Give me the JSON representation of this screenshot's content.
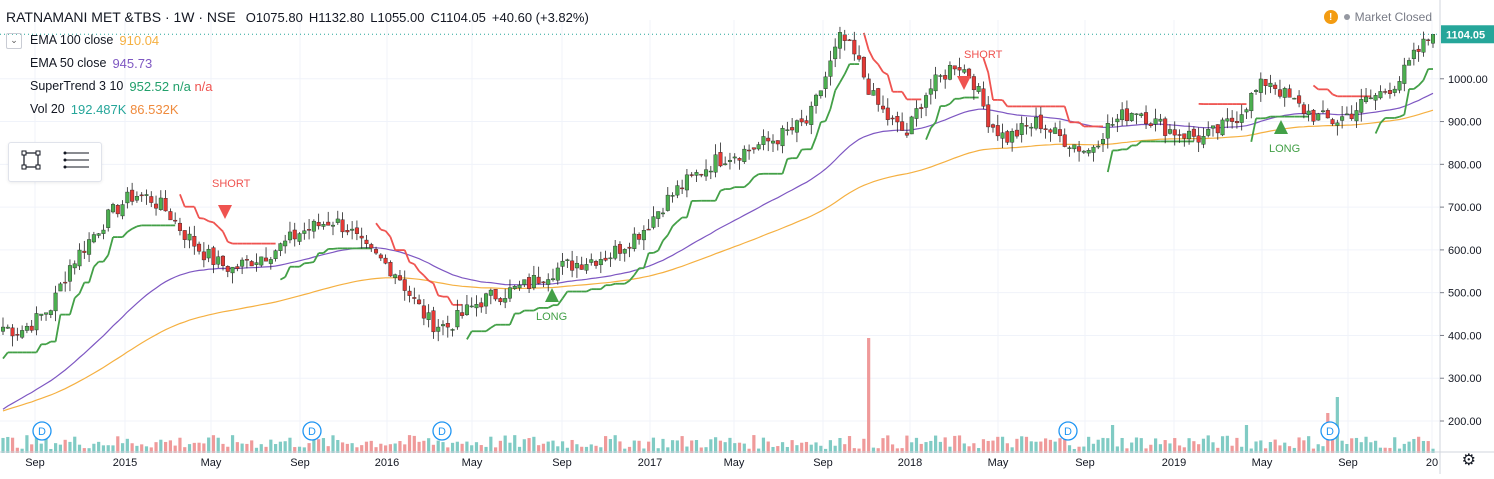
{
  "header": {
    "symbol": "RATNAMANI MET &TBS · 1W · NSE",
    "open": "O1075.80",
    "high": "H1132.80",
    "low": "L1055.00",
    "close": "C1104.05",
    "change": "+40.60 (+3.82%)"
  },
  "indicators": {
    "ema100": {
      "name": "EMA 100 close",
      "value": "910.04"
    },
    "ema50": {
      "name": "EMA 50 close",
      "value": "945.73"
    },
    "supertrend": {
      "name": "SuperTrend 3 10",
      "value": "952.52",
      "na1": "n/a",
      "na2": "n/a"
    },
    "vol": {
      "name": "Vol 20",
      "value1": "192.487K",
      "value2": "86.532K"
    }
  },
  "status": {
    "market": "Market Closed",
    "warning_icon": "warning-icon"
  },
  "colors": {
    "up": "#26a69a",
    "down": "#ef5350",
    "candle_up_body": "#4caf50",
    "candle_down_body": "#e53935",
    "ema100": "#f5b041",
    "ema50": "#7e57c2",
    "st_up": "#43a047",
    "st_down": "#ef5350",
    "vol_up": "#80cbc4",
    "vol_down": "#ef9a9a",
    "dividend": "#2196f3",
    "last_price_bg": "#26a69a"
  },
  "chart_data": {
    "type": "candlestick",
    "last_price": "1104.05",
    "y_ticks": [
      "1000.00",
      "900.00",
      "800.00",
      "700.00",
      "600.00",
      "500.00",
      "400.00",
      "300.00",
      "200.00"
    ],
    "x_ticks": [
      "Sep",
      "2015",
      "May",
      "Sep",
      "2016",
      "May",
      "Sep",
      "2017",
      "May",
      "Sep",
      "2018",
      "May",
      "Sep",
      "2019",
      "May",
      "Sep",
      "20"
    ],
    "signals": [
      {
        "label": "SHORT",
        "type": "short"
      },
      {
        "label": "LONG",
        "type": "long"
      },
      {
        "label": "SHORT",
        "type": "short"
      },
      {
        "label": "LONG",
        "type": "long"
      }
    ],
    "dividend_label": "D",
    "ohlc_path_closes": [
      420,
      410,
      435,
      470,
      560,
      610,
      660,
      700,
      730,
      720,
      690,
      640,
      600,
      570,
      555,
      575,
      590,
      610,
      640,
      655,
      670,
      650,
      600,
      575,
      545,
      480,
      430,
      420,
      450,
      480,
      495,
      505,
      520,
      545,
      560,
      570,
      580,
      590,
      620,
      650,
      700,
      740,
      770,
      800,
      820,
      830,
      845,
      860,
      880,
      900,
      1000,
      1100,
      1040,
      950,
      900,
      870,
      960,
      1000,
      1040,
      1000,
      900,
      860,
      880,
      900,
      870,
      850,
      830,
      880,
      910,
      930,
      900,
      880,
      870,
      860,
      880,
      910,
      960,
      1000,
      960,
      930,
      910,
      900,
      920,
      950,
      970,
      1000,
      1060,
      1104
    ]
  }
}
